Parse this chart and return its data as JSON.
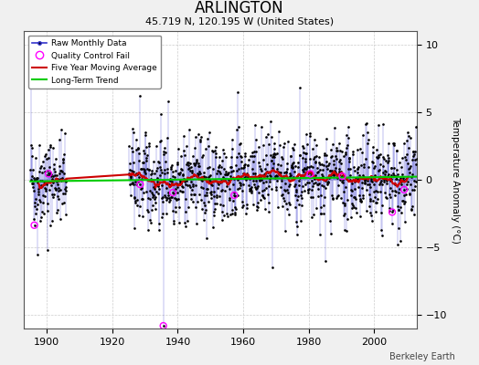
{
  "title": "ARLINGTON",
  "subtitle": "45.719 N, 120.195 W (United States)",
  "ylabel": "Temperature Anomaly (°C)",
  "credit": "Berkeley Earth",
  "xlim": [
    1893,
    2013
  ],
  "ylim": [
    -11,
    11
  ],
  "yticks": [
    -10,
    -5,
    0,
    5,
    10
  ],
  "xticks": [
    1900,
    1920,
    1940,
    1960,
    1980,
    2000
  ],
  "bg_color": "#ffffff",
  "fig_color": "#f0f0f0",
  "line_color": "#3333cc",
  "marker_color": "#000000",
  "ma_color": "#cc0000",
  "trend_color": "#00cc00",
  "qc_color": "#ff00ff",
  "seed": 42,
  "start_year": 1895,
  "gap_start": 1906,
  "gap_end": 1925,
  "end_year": 2012,
  "noise_std": 1.8
}
